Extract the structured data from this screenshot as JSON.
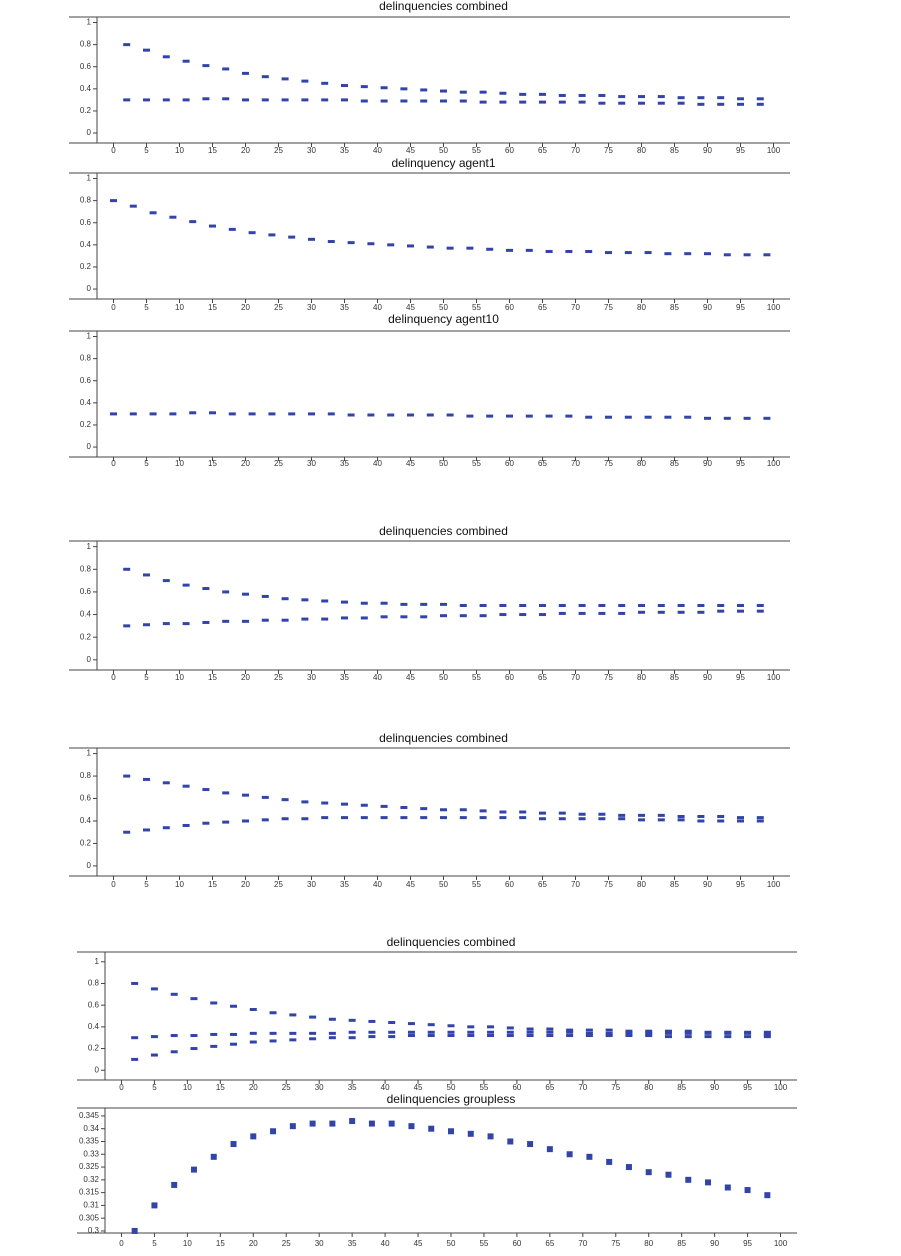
{
  "chart_data": [
    {
      "type": "scatter",
      "title": "delinquencies combined",
      "x": [
        2,
        5,
        8,
        11,
        14,
        17,
        20,
        23,
        26,
        29,
        32,
        35,
        38,
        41,
        44,
        47,
        50,
        53,
        56,
        59,
        62,
        65,
        68,
        71,
        74,
        77,
        80,
        83,
        86,
        89,
        92,
        95,
        98
      ],
      "series": [
        {
          "color": "#3344a8",
          "values": [
            0.8,
            0.75,
            0.69,
            0.65,
            0.61,
            0.58,
            0.54,
            0.51,
            0.49,
            0.47,
            0.45,
            0.43,
            0.42,
            0.41,
            0.4,
            0.39,
            0.38,
            0.37,
            0.37,
            0.36,
            0.35,
            0.35,
            0.34,
            0.34,
            0.34,
            0.33,
            0.33,
            0.33,
            0.32,
            0.32,
            0.32,
            0.31,
            0.31
          ]
        },
        {
          "color": "#3344a8",
          "values": [
            0.3,
            0.3,
            0.3,
            0.3,
            0.31,
            0.31,
            0.3,
            0.3,
            0.3,
            0.3,
            0.3,
            0.3,
            0.29,
            0.29,
            0.29,
            0.29,
            0.29,
            0.29,
            0.28,
            0.28,
            0.28,
            0.28,
            0.28,
            0.28,
            0.27,
            0.27,
            0.27,
            0.27,
            0.27,
            0.26,
            0.26,
            0.26,
            0.26
          ]
        }
      ],
      "xlim": [
        -2.5,
        102.5
      ],
      "ylim": [
        -0.09,
        1.05
      ],
      "xticks": [
        0,
        5,
        10,
        15,
        20,
        25,
        30,
        35,
        40,
        45,
        50,
        55,
        60,
        65,
        70,
        75,
        80,
        85,
        90,
        95,
        100
      ],
      "yticks": [
        0,
        0.2,
        0.4,
        0.6,
        0.8,
        1
      ]
    },
    {
      "type": "scatter",
      "title": "delinquency agent1",
      "x": [
        0,
        3,
        6,
        9,
        12,
        15,
        18,
        21,
        24,
        27,
        30,
        33,
        36,
        39,
        42,
        45,
        48,
        51,
        54,
        57,
        60,
        63,
        66,
        69,
        72,
        75,
        78,
        81,
        84,
        87,
        90,
        93,
        96,
        99
      ],
      "series": [
        {
          "color": "#3344a8",
          "values": [
            0.8,
            0.75,
            0.69,
            0.65,
            0.61,
            0.57,
            0.54,
            0.51,
            0.49,
            0.47,
            0.45,
            0.43,
            0.42,
            0.41,
            0.4,
            0.39,
            0.38,
            0.37,
            0.37,
            0.36,
            0.35,
            0.35,
            0.34,
            0.34,
            0.34,
            0.33,
            0.33,
            0.33,
            0.32,
            0.32,
            0.32,
            0.31,
            0.31,
            0.31
          ]
        }
      ],
      "xlim": [
        -2.5,
        102.5
      ],
      "ylim": [
        -0.09,
        1.05
      ],
      "xticks": [
        0,
        5,
        10,
        15,
        20,
        25,
        30,
        35,
        40,
        45,
        50,
        55,
        60,
        65,
        70,
        75,
        80,
        85,
        90,
        95,
        100
      ],
      "yticks": [
        0,
        0.2,
        0.4,
        0.6,
        0.8,
        1
      ]
    },
    {
      "type": "scatter",
      "title": "delinquency agent10",
      "x": [
        0,
        3,
        6,
        9,
        12,
        15,
        18,
        21,
        24,
        27,
        30,
        33,
        36,
        39,
        42,
        45,
        48,
        51,
        54,
        57,
        60,
        63,
        66,
        69,
        72,
        75,
        78,
        81,
        84,
        87,
        90,
        93,
        96,
        99
      ],
      "series": [
        {
          "color": "#3344a8",
          "values": [
            0.3,
            0.3,
            0.3,
            0.3,
            0.31,
            0.31,
            0.3,
            0.3,
            0.3,
            0.3,
            0.3,
            0.3,
            0.29,
            0.29,
            0.29,
            0.29,
            0.29,
            0.29,
            0.28,
            0.28,
            0.28,
            0.28,
            0.28,
            0.28,
            0.27,
            0.27,
            0.27,
            0.27,
            0.27,
            0.27,
            0.26,
            0.26,
            0.26,
            0.26
          ]
        }
      ],
      "xlim": [
        -2.5,
        102.5
      ],
      "ylim": [
        -0.09,
        1.05
      ],
      "xticks": [
        0,
        5,
        10,
        15,
        20,
        25,
        30,
        35,
        40,
        45,
        50,
        55,
        60,
        65,
        70,
        75,
        80,
        85,
        90,
        95,
        100
      ],
      "yticks": [
        0,
        0.2,
        0.4,
        0.6,
        0.8,
        1
      ]
    },
    {
      "type": "scatter",
      "title": "delinquencies combined",
      "x": [
        2,
        5,
        8,
        11,
        14,
        17,
        20,
        23,
        26,
        29,
        32,
        35,
        38,
        41,
        44,
        47,
        50,
        53,
        56,
        59,
        62,
        65,
        68,
        71,
        74,
        77,
        80,
        83,
        86,
        89,
        92,
        95,
        98
      ],
      "series": [
        {
          "color": "#3344a8",
          "values": [
            0.8,
            0.75,
            0.7,
            0.66,
            0.63,
            0.6,
            0.58,
            0.56,
            0.54,
            0.53,
            0.52,
            0.51,
            0.5,
            0.5,
            0.49,
            0.49,
            0.49,
            0.48,
            0.48,
            0.48,
            0.48,
            0.48,
            0.48,
            0.48,
            0.48,
            0.48,
            0.48,
            0.48,
            0.48,
            0.48,
            0.48,
            0.48,
            0.48
          ]
        },
        {
          "color": "#3344a8",
          "values": [
            0.3,
            0.31,
            0.32,
            0.32,
            0.33,
            0.34,
            0.34,
            0.35,
            0.35,
            0.36,
            0.36,
            0.37,
            0.37,
            0.38,
            0.38,
            0.38,
            0.39,
            0.39,
            0.39,
            0.4,
            0.4,
            0.4,
            0.41,
            0.41,
            0.41,
            0.41,
            0.42,
            0.42,
            0.42,
            0.42,
            0.43,
            0.43,
            0.43
          ]
        }
      ],
      "xlim": [
        -2.5,
        102.5
      ],
      "ylim": [
        -0.09,
        1.05
      ],
      "xticks": [
        0,
        5,
        10,
        15,
        20,
        25,
        30,
        35,
        40,
        45,
        50,
        55,
        60,
        65,
        70,
        75,
        80,
        85,
        90,
        95,
        100
      ],
      "yticks": [
        0,
        0.2,
        0.4,
        0.6,
        0.8,
        1
      ]
    },
    {
      "type": "scatter",
      "title": "delinquencies combined",
      "x": [
        2,
        5,
        8,
        11,
        14,
        17,
        20,
        23,
        26,
        29,
        32,
        35,
        38,
        41,
        44,
        47,
        50,
        53,
        56,
        59,
        62,
        65,
        68,
        71,
        74,
        77,
        80,
        83,
        86,
        89,
        92,
        95,
        98
      ],
      "series": [
        {
          "color": "#3344a8",
          "values": [
            0.8,
            0.77,
            0.74,
            0.71,
            0.68,
            0.65,
            0.63,
            0.61,
            0.59,
            0.57,
            0.56,
            0.55,
            0.54,
            0.53,
            0.52,
            0.51,
            0.5,
            0.5,
            0.49,
            0.48,
            0.48,
            0.47,
            0.47,
            0.46,
            0.46,
            0.45,
            0.45,
            0.45,
            0.44,
            0.44,
            0.44,
            0.43,
            0.43
          ]
        },
        {
          "color": "#3344a8",
          "values": [
            0.3,
            0.32,
            0.34,
            0.36,
            0.38,
            0.39,
            0.4,
            0.41,
            0.42,
            0.42,
            0.43,
            0.43,
            0.43,
            0.43,
            0.43,
            0.43,
            0.43,
            0.43,
            0.43,
            0.43,
            0.43,
            0.42,
            0.42,
            0.42,
            0.42,
            0.42,
            0.41,
            0.41,
            0.41,
            0.4,
            0.4,
            0.4,
            0.4
          ]
        }
      ],
      "xlim": [
        -2.5,
        102.5
      ],
      "ylim": [
        -0.09,
        1.05
      ],
      "xticks": [
        0,
        5,
        10,
        15,
        20,
        25,
        30,
        35,
        40,
        45,
        50,
        55,
        60,
        65,
        70,
        75,
        80,
        85,
        90,
        95,
        100
      ],
      "yticks": [
        0,
        0.2,
        0.4,
        0.6,
        0.8,
        1
      ]
    },
    {
      "type": "scatter",
      "title": "delinquencies combined",
      "x": [
        2,
        5,
        8,
        11,
        14,
        17,
        20,
        23,
        26,
        29,
        32,
        35,
        38,
        41,
        44,
        47,
        50,
        53,
        56,
        59,
        62,
        65,
        68,
        71,
        74,
        77,
        80,
        83,
        86,
        89,
        92,
        95,
        98
      ],
      "series": [
        {
          "color": "#3344a8",
          "values": [
            0.8,
            0.75,
            0.7,
            0.66,
            0.62,
            0.59,
            0.56,
            0.53,
            0.51,
            0.49,
            0.47,
            0.46,
            0.45,
            0.44,
            0.43,
            0.42,
            0.41,
            0.4,
            0.4,
            0.39,
            0.38,
            0.38,
            0.37,
            0.37,
            0.37,
            0.36,
            0.36,
            0.36,
            0.36,
            0.35,
            0.35,
            0.35,
            0.35
          ]
        },
        {
          "color": "#3344a8",
          "values": [
            0.3,
            0.31,
            0.32,
            0.32,
            0.33,
            0.33,
            0.34,
            0.34,
            0.34,
            0.34,
            0.34,
            0.35,
            0.35,
            0.35,
            0.35,
            0.35,
            0.35,
            0.35,
            0.35,
            0.35,
            0.35,
            0.35,
            0.35,
            0.34,
            0.34,
            0.34,
            0.34,
            0.34,
            0.34,
            0.34,
            0.34,
            0.34,
            0.33
          ]
        },
        {
          "color": "#3344a8",
          "values": [
            0.1,
            0.14,
            0.17,
            0.2,
            0.22,
            0.24,
            0.26,
            0.27,
            0.28,
            0.29,
            0.3,
            0.3,
            0.31,
            0.31,
            0.32,
            0.32,
            0.32,
            0.32,
            0.32,
            0.32,
            0.32,
            0.32,
            0.32,
            0.32,
            0.32,
            0.32,
            0.32,
            0.31,
            0.31,
            0.31,
            0.31,
            0.31,
            0.31
          ]
        }
      ],
      "xlim": [
        -2.5,
        102.5
      ],
      "ylim": [
        -0.09,
        1.09
      ],
      "xticks": [
        0,
        5,
        10,
        15,
        20,
        25,
        30,
        35,
        40,
        45,
        50,
        55,
        60,
        65,
        70,
        75,
        80,
        85,
        90,
        95,
        100
      ],
      "yticks": [
        0,
        0.2,
        0.4,
        0.6,
        0.8,
        1
      ]
    },
    {
      "type": "scatter",
      "title": "delinquencies groupless",
      "x": [
        2,
        5,
        8,
        11,
        14,
        17,
        20,
        23,
        26,
        29,
        32,
        35,
        38,
        41,
        44,
        47,
        50,
        53,
        56,
        59,
        62,
        65,
        68,
        71,
        74,
        77,
        80,
        83,
        86,
        89,
        92,
        95,
        98
      ],
      "series": [
        {
          "color": "#3344a8",
          "values": [
            0.3,
            0.31,
            0.318,
            0.324,
            0.329,
            0.334,
            0.337,
            0.339,
            0.341,
            0.342,
            0.342,
            0.343,
            0.342,
            0.342,
            0.341,
            0.34,
            0.339,
            0.338,
            0.337,
            0.335,
            0.334,
            0.332,
            0.33,
            0.329,
            0.327,
            0.325,
            0.323,
            0.322,
            0.32,
            0.319,
            0.317,
            0.316,
            0.314
          ]
        }
      ],
      "xlim": [
        -2.5,
        102.5
      ],
      "ylim": [
        0.2992,
        0.3481
      ],
      "xticks": [
        0,
        5,
        10,
        15,
        20,
        25,
        30,
        35,
        40,
        45,
        50,
        55,
        60,
        65,
        70,
        75,
        80,
        85,
        90,
        95,
        100
      ],
      "yticks": [
        0.3,
        0.305,
        0.31,
        0.315,
        0.32,
        0.325,
        0.33,
        0.335,
        0.34,
        0.345
      ]
    }
  ]
}
